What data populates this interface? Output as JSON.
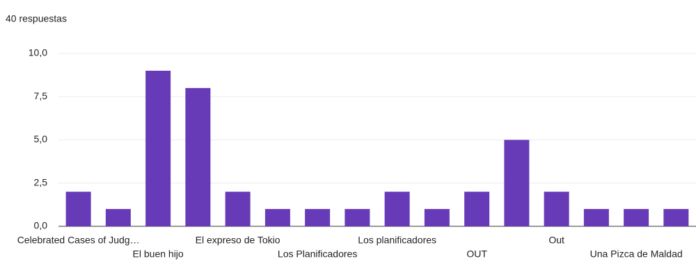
{
  "chart_data": {
    "type": "bar",
    "subtitle": "40 respuestas",
    "categories": [
      "Celebrated Cases of Judg…",
      null,
      "El buen hijo",
      null,
      "El expreso de Tokio",
      null,
      "Los Planificadores",
      null,
      "Los planificadores",
      null,
      "OUT",
      null,
      "Out",
      null,
      "Una Pizca de Maldad",
      null
    ],
    "values": [
      2,
      1,
      9,
      8,
      2,
      1,
      1,
      1,
      2,
      1,
      2,
      5,
      2,
      1,
      1,
      1
    ],
    "color": "#673ab7",
    "ylim": [
      0,
      10
    ],
    "yticks": [
      {
        "value": 0,
        "label": "0,0"
      },
      {
        "value": 2.5,
        "label": "2,5"
      },
      {
        "value": 5,
        "label": "5,0"
      },
      {
        "value": 7.5,
        "label": "7,5"
      },
      {
        "value": 10,
        "label": "10,0"
      }
    ],
    "grid": true
  }
}
